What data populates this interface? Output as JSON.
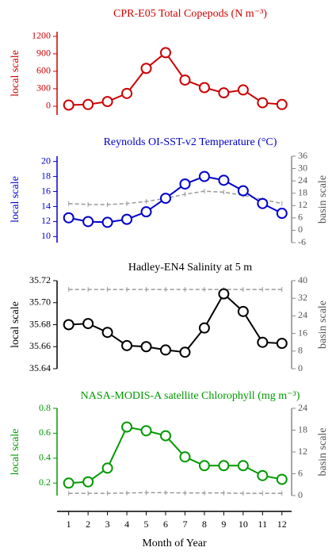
{
  "chart_data": [
    {
      "type": "line",
      "title": "CPR-E05 Total Copepods (N m⁻³)",
      "title_color": "#cc0000",
      "ylabel": "local scale",
      "x": [
        1,
        2,
        3,
        4,
        5,
        6,
        7,
        8,
        9,
        10,
        11,
        12
      ],
      "ylim": [
        -150,
        1280
      ],
      "yticks": [
        0,
        300,
        600,
        900,
        1200
      ],
      "series": [
        {
          "color": "#cc0000",
          "values": [
            20,
            30,
            80,
            220,
            650,
            920,
            450,
            320,
            230,
            280,
            60,
            30
          ]
        }
      ]
    },
    {
      "type": "line",
      "title": "Reynolds OI-SST-v2 Temperature (°C)",
      "title_color": "#0000cc",
      "ylabel": "local scale",
      "y2label": "basin scale",
      "x": [
        1,
        2,
        3,
        4,
        5,
        6,
        7,
        8,
        9,
        10,
        11,
        12
      ],
      "ylim": [
        9.2,
        20.7
      ],
      "yticks": [
        10,
        12,
        14,
        16,
        18,
        20
      ],
      "y2lim": [
        -6,
        36
      ],
      "y2ticks": [
        -6,
        0,
        6,
        12,
        18,
        24,
        30,
        36
      ],
      "series": [
        {
          "color": "#0000cc",
          "values": [
            12.5,
            12.0,
            11.9,
            12.3,
            13.3,
            15.1,
            17.0,
            18.0,
            17.5,
            16.1,
            14.4,
            13.1
          ]
        },
        {
          "color": "#999999",
          "axis": "y2",
          "dashed": true,
          "values": [
            13,
            12.5,
            12.5,
            13,
            14,
            15.5,
            17.5,
            19,
            18.5,
            17,
            15,
            13
          ]
        }
      ]
    },
    {
      "type": "line",
      "title": "Hadley-EN4 Salinity at 5 m",
      "title_color": "#000000",
      "ylabel": "local scale",
      "y2label": "basin scale",
      "x": [
        1,
        2,
        3,
        4,
        5,
        6,
        7,
        8,
        9,
        10,
        11,
        12
      ],
      "ylim": [
        35.64,
        35.72
      ],
      "yticks": [
        35.64,
        35.66,
        35.68,
        {
          "value": 35.7,
          "label": "35.70"
        },
        35.72
      ],
      "y2lim": [
        0,
        40
      ],
      "y2ticks": [
        0,
        8,
        16,
        24,
        32,
        40
      ],
      "series": [
        {
          "color": "#000000",
          "values": [
            35.68,
            35.681,
            35.673,
            35.661,
            35.66,
            35.657,
            35.655,
            35.677,
            35.708,
            35.692,
            35.664,
            35.663
          ]
        },
        {
          "color": "#999999",
          "axis": "y2",
          "dashed": true,
          "values": [
            36,
            36,
            36,
            36,
            36,
            36,
            36,
            36,
            36,
            36,
            36,
            36
          ]
        }
      ]
    },
    {
      "type": "line",
      "title": "NASA-MODIS-A satellite Chlorophyll (mg m⁻³)",
      "title_color": "#009900",
      "ylabel": "local scale",
      "y2label": "basin scale",
      "x": [
        1,
        2,
        3,
        4,
        5,
        6,
        7,
        8,
        9,
        10,
        11,
        12
      ],
      "ylim": [
        0.1,
        0.8
      ],
      "yticks": [
        0.2,
        0.4,
        0.6,
        0.8
      ],
      "y2lim": [
        0,
        24
      ],
      "y2ticks": [
        0,
        6,
        12,
        18,
        24
      ],
      "series": [
        {
          "color": "#009900",
          "values": [
            0.2,
            0.21,
            0.32,
            0.65,
            0.62,
            0.58,
            0.41,
            0.34,
            0.34,
            0.34,
            0.26,
            0.23
          ]
        },
        {
          "color": "#999999",
          "axis": "y2",
          "dashed": true,
          "values": [
            0.6,
            0.6,
            0.6,
            0.7,
            0.8,
            0.8,
            0.7,
            0.7,
            0.7,
            0.6,
            0.6,
            0.6
          ]
        }
      ]
    }
  ],
  "x_axis": {
    "label": "Month of Year",
    "xlim": [
      0.4,
      12.5
    ],
    "xticks": [
      1,
      2,
      3,
      4,
      5,
      6,
      7,
      8,
      9,
      10,
      11,
      12
    ]
  }
}
